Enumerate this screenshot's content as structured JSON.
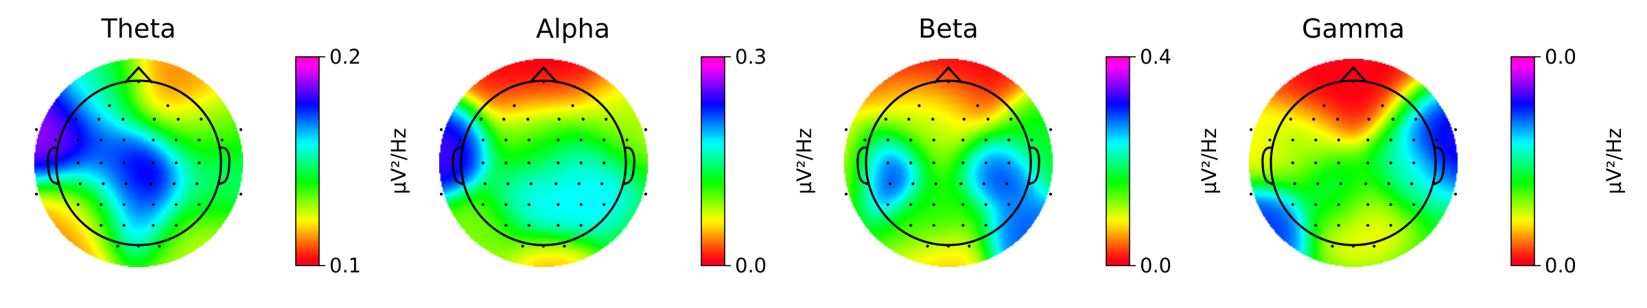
{
  "chart_data": [
    {
      "type": "heatmap",
      "title": "Theta",
      "colorbar": {
        "min_label": "0.1",
        "max_label": "0.2",
        "unit": "µV²/Hz"
      },
      "colormap": "gist_rainbow",
      "head_outline": true,
      "hotspots": [
        {
          "x": 0.05,
          "y": 0.05,
          "v": 0.95,
          "r": 0.28
        },
        {
          "x": -0.72,
          "y": -0.28,
          "v": 0.92,
          "r": 0.28
        },
        {
          "x": -0.05,
          "y": 0.45,
          "v": 0.7,
          "r": 0.25
        },
        {
          "x": -0.3,
          "y": 0.05,
          "v": 0.62,
          "r": 0.25
        },
        {
          "x": 0.3,
          "y": -0.6,
          "v": 0.1,
          "r": 0.3
        },
        {
          "x": -0.72,
          "y": 0.75,
          "v": 0.1,
          "r": 0.3
        },
        {
          "x": 0.55,
          "y": 0.75,
          "v": 0.25,
          "r": 0.3
        },
        {
          "x": -0.35,
          "y": -0.62,
          "v": 0.5,
          "r": 0.25
        },
        {
          "x": -0.5,
          "y": 0.45,
          "v": 0.2,
          "r": 0.22
        },
        {
          "x": 0.7,
          "y": 0.2,
          "v": 0.5,
          "r": 0.25
        },
        {
          "x": 0.6,
          "y": -0.25,
          "v": 0.35,
          "r": 0.25
        }
      ]
    },
    {
      "type": "heatmap",
      "title": "Alpha",
      "colorbar": {
        "min_label": "0.0",
        "max_label": "0.3",
        "unit": "µV²/Hz"
      },
      "colormap": "gist_rainbow",
      "head_outline": true,
      "hotspots": [
        {
          "x": 0.0,
          "y": -0.95,
          "v": 0.0,
          "r": 0.45
        },
        {
          "x": -0.9,
          "y": -0.15,
          "v": 0.85,
          "r": 0.22
        },
        {
          "x": 0.35,
          "y": 0.05,
          "v": 0.65,
          "r": 0.25
        },
        {
          "x": -0.1,
          "y": 0.4,
          "v": 0.62,
          "r": 0.22
        },
        {
          "x": 0.1,
          "y": 0.4,
          "v": 0.6,
          "r": 0.2
        },
        {
          "x": 0.0,
          "y": -0.15,
          "v": 0.42,
          "r": 0.3
        },
        {
          "x": 0.7,
          "y": -0.4,
          "v": 0.28,
          "r": 0.25
        },
        {
          "x": 0.0,
          "y": 0.95,
          "v": 0.15,
          "r": 0.2
        },
        {
          "x": -0.5,
          "y": 0.7,
          "v": 0.3,
          "r": 0.25
        }
      ]
    },
    {
      "type": "heatmap",
      "title": "Beta",
      "colorbar": {
        "min_label": "0.0",
        "max_label": "0.4",
        "unit": "µV²/Hz"
      },
      "colormap": "gist_rainbow",
      "head_outline": true,
      "hotspots": [
        {
          "x": 0.0,
          "y": -0.98,
          "v": 0.0,
          "r": 0.5
        },
        {
          "x": -0.6,
          "y": 0.05,
          "v": 0.95,
          "r": 0.2
        },
        {
          "x": 0.45,
          "y": 0.05,
          "v": 0.78,
          "r": 0.2
        },
        {
          "x": 0.7,
          "y": 0.75,
          "v": 0.72,
          "r": 0.22
        },
        {
          "x": -0.9,
          "y": 0.0,
          "v": 0.2,
          "r": 0.22
        },
        {
          "x": 0.0,
          "y": 0.95,
          "v": 0.15,
          "r": 0.25
        },
        {
          "x": -0.1,
          "y": 0.5,
          "v": 0.4,
          "r": 0.25
        },
        {
          "x": 0.85,
          "y": -0.3,
          "v": 0.45,
          "r": 0.22
        },
        {
          "x": -0.2,
          "y": -0.35,
          "v": 0.35,
          "r": 0.3
        }
      ]
    },
    {
      "type": "heatmap",
      "title": "Gamma",
      "colorbar": {
        "min_label": "0.0",
        "max_label": "0.0",
        "unit": "µV²/Hz"
      },
      "colormap": "gist_rainbow",
      "head_outline": true,
      "hotspots": [
        {
          "x": 0.0,
          "y": -0.92,
          "v": 0.0,
          "r": 0.45
        },
        {
          "x": 0.8,
          "y": -0.3,
          "v": 0.85,
          "r": 0.25
        },
        {
          "x": -0.85,
          "y": 0.55,
          "v": 0.75,
          "r": 0.22
        },
        {
          "x": -0.15,
          "y": 0.25,
          "v": 0.55,
          "r": 0.2
        },
        {
          "x": 0.45,
          "y": 0.05,
          "v": 0.55,
          "r": 0.22
        },
        {
          "x": 0.05,
          "y": 0.45,
          "v": 0.2,
          "r": 0.25
        },
        {
          "x": -0.5,
          "y": -0.1,
          "v": 0.3,
          "r": 0.25
        },
        {
          "x": -0.9,
          "y": -0.1,
          "v": 0.2,
          "r": 0.2
        }
      ]
    }
  ],
  "electrodes": [
    [
      0.0,
      -0.78
    ],
    [
      -0.28,
      -0.55
    ],
    [
      0.28,
      -0.55
    ],
    [
      -0.6,
      -0.42
    ],
    [
      -0.38,
      -0.42
    ],
    [
      -0.15,
      -0.42
    ],
    [
      0.15,
      -0.42
    ],
    [
      0.38,
      -0.42
    ],
    [
      0.6,
      -0.42
    ],
    [
      -0.8,
      -0.22
    ],
    [
      -0.58,
      -0.22
    ],
    [
      -0.36,
      -0.22
    ],
    [
      -0.14,
      -0.22
    ],
    [
      0.14,
      -0.22
    ],
    [
      0.36,
      -0.22
    ],
    [
      0.58,
      -0.22
    ],
    [
      0.8,
      -0.22
    ],
    [
      -0.98,
      -0.32
    ],
    [
      0.98,
      -0.32
    ],
    [
      -0.58,
      0.0
    ],
    [
      -0.36,
      0.0
    ],
    [
      -0.14,
      0.0
    ],
    [
      0.14,
      0.0
    ],
    [
      0.36,
      0.0
    ],
    [
      0.58,
      0.0
    ],
    [
      -0.78,
      0.2
    ],
    [
      -0.56,
      0.2
    ],
    [
      -0.34,
      0.2
    ],
    [
      -0.12,
      0.2
    ],
    [
      0.12,
      0.2
    ],
    [
      0.34,
      0.2
    ],
    [
      0.56,
      0.2
    ],
    [
      0.78,
      0.2
    ],
    [
      -0.98,
      0.3
    ],
    [
      0.98,
      0.3
    ],
    [
      -0.58,
      0.4
    ],
    [
      -0.36,
      0.4
    ],
    [
      -0.14,
      0.4
    ],
    [
      0.14,
      0.4
    ],
    [
      0.36,
      0.4
    ],
    [
      0.58,
      0.4
    ],
    [
      -0.36,
      0.6
    ],
    [
      -0.14,
      0.6
    ],
    [
      0.14,
      0.6
    ],
    [
      0.36,
      0.6
    ],
    [
      -0.2,
      0.8
    ],
    [
      0.0,
      0.8
    ],
    [
      0.2,
      0.8
    ]
  ]
}
